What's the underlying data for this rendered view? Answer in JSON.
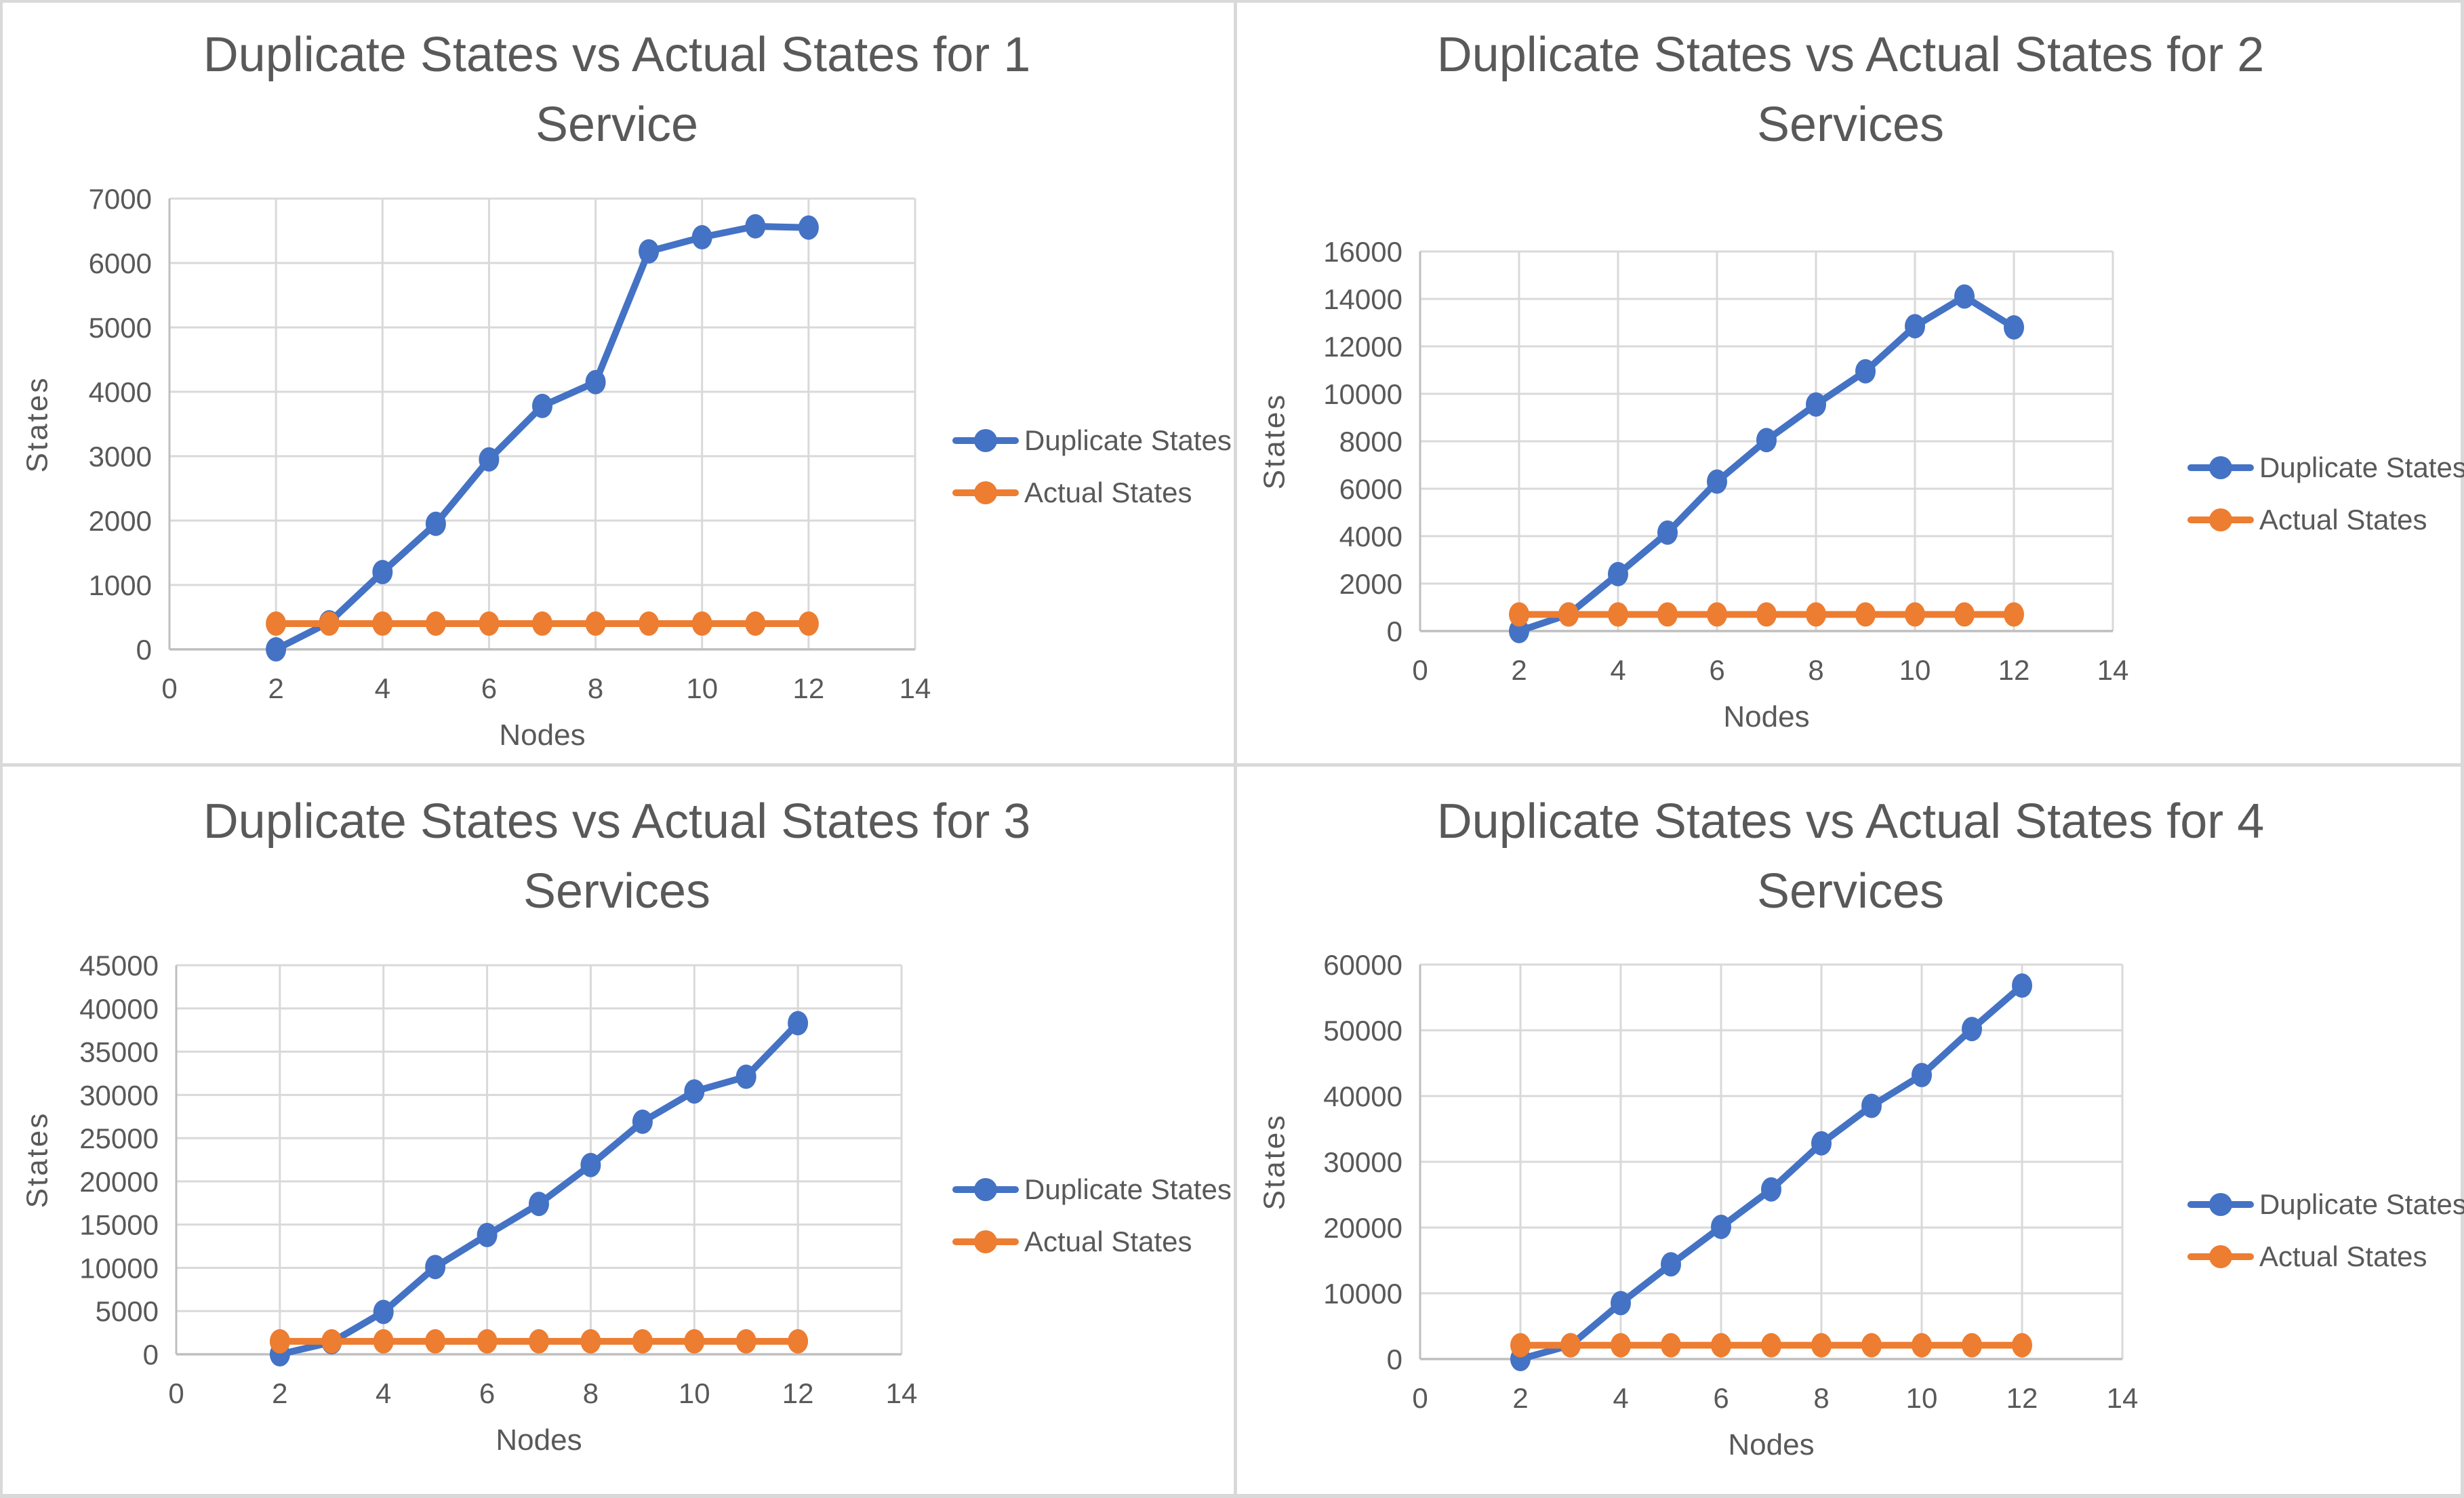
{
  "page": {
    "background": "#ffffff",
    "border_color": "#d9d9d9"
  },
  "colors": {
    "series_duplicate": "#4472C4",
    "series_actual": "#ED7D31",
    "text": "#595959",
    "gridline": "#D9D9D9",
    "axis_line": "#BFBFBF"
  },
  "chart_data": [
    {
      "type": "line",
      "title_line1": "Duplicate States vs Actual States for 1",
      "title_line2": "Service",
      "xlabel": "Nodes",
      "ylabel": "States",
      "x": [
        2,
        3,
        4,
        5,
        6,
        7,
        8,
        9,
        10,
        11,
        12
      ],
      "series": [
        {
          "name": "Duplicate States",
          "color": "#4472C4",
          "values": [
            0,
            420,
            1200,
            1950,
            2950,
            3780,
            4150,
            6180,
            6400,
            6570,
            6550
          ]
        },
        {
          "name": "Actual States",
          "color": "#ED7D31",
          "values": [
            400,
            400,
            400,
            400,
            400,
            400,
            400,
            400,
            400,
            400,
            400
          ]
        }
      ],
      "xlim": [
        0,
        14
      ],
      "ylim": [
        0,
        7000
      ],
      "xticks": [
        0,
        2,
        4,
        6,
        8,
        10,
        12,
        14
      ],
      "yticks": [
        0,
        1000,
        2000,
        3000,
        4000,
        5000,
        6000,
        7000
      ],
      "legend_position": "right",
      "grid": true
    },
    {
      "type": "line",
      "title_line1": "Duplicate States vs Actual States for 2",
      "title_line2": "Services",
      "xlabel": "Nodes",
      "ylabel": "States",
      "x": [
        2,
        3,
        4,
        5,
        6,
        7,
        8,
        9,
        10,
        11,
        12
      ],
      "series": [
        {
          "name": "Duplicate States",
          "color": "#4472C4",
          "values": [
            0,
            700,
            2400,
            4150,
            6300,
            8050,
            9550,
            10950,
            12850,
            14100,
            12800
          ]
        },
        {
          "name": "Actual States",
          "color": "#ED7D31",
          "values": [
            700,
            700,
            700,
            700,
            700,
            700,
            700,
            700,
            700,
            700,
            700
          ]
        }
      ],
      "xlim": [
        0,
        14
      ],
      "ylim": [
        0,
        16000
      ],
      "xticks": [
        0,
        2,
        4,
        6,
        8,
        10,
        12,
        14
      ],
      "yticks": [
        0,
        2000,
        4000,
        6000,
        8000,
        10000,
        12000,
        14000,
        16000
      ],
      "legend_position": "right",
      "grid": true
    },
    {
      "type": "line",
      "title_line1": "Duplicate States vs Actual States for 3",
      "title_line2": "Services",
      "xlabel": "Nodes",
      "ylabel": "States",
      "x": [
        2,
        3,
        4,
        5,
        6,
        7,
        8,
        9,
        10,
        11,
        12
      ],
      "series": [
        {
          "name": "Duplicate States",
          "color": "#4472C4",
          "values": [
            0,
            1400,
            4900,
            10100,
            13800,
            17400,
            21900,
            26900,
            30400,
            32100,
            38300
          ]
        },
        {
          "name": "Actual States",
          "color": "#ED7D31",
          "values": [
            1500,
            1500,
            1500,
            1500,
            1500,
            1500,
            1500,
            1500,
            1500,
            1500,
            1500
          ]
        }
      ],
      "xlim": [
        0,
        14
      ],
      "ylim": [
        0,
        45000
      ],
      "xticks": [
        0,
        2,
        4,
        6,
        8,
        10,
        12,
        14
      ],
      "yticks": [
        0,
        5000,
        10000,
        15000,
        20000,
        25000,
        30000,
        35000,
        40000,
        45000
      ],
      "legend_position": "right",
      "grid": true
    },
    {
      "type": "line",
      "title_line1": "Duplicate States vs Actual States for 4",
      "title_line2": "Services",
      "xlabel": "Nodes",
      "ylabel": "States",
      "x": [
        2,
        3,
        4,
        5,
        6,
        7,
        8,
        9,
        10,
        11,
        12
      ],
      "series": [
        {
          "name": "Duplicate States",
          "color": "#4472C4",
          "values": [
            0,
            2100,
            8500,
            14400,
            20100,
            25800,
            32800,
            38500,
            43200,
            50200,
            56800
          ]
        },
        {
          "name": "Actual States",
          "color": "#ED7D31",
          "values": [
            2100,
            2100,
            2100,
            2100,
            2100,
            2100,
            2100,
            2100,
            2100,
            2100,
            2100
          ]
        }
      ],
      "xlim": [
        0,
        14
      ],
      "ylim": [
        0,
        60000
      ],
      "xticks": [
        0,
        2,
        4,
        6,
        8,
        10,
        12,
        14
      ],
      "yticks": [
        0,
        10000,
        20000,
        30000,
        40000,
        50000,
        60000
      ],
      "legend_position": "right",
      "grid": true
    }
  ]
}
